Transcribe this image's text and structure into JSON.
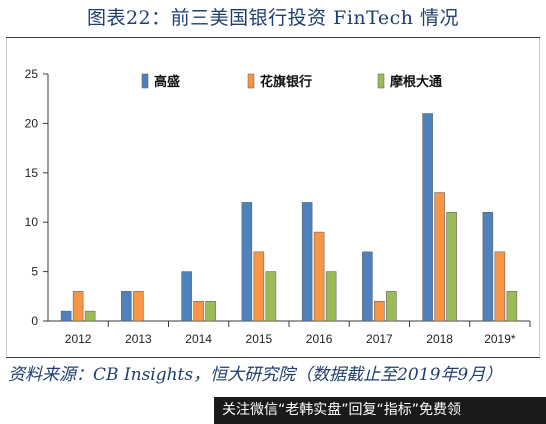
{
  "title": "图表22：前三美国银行投资 FinTech 情况",
  "source": "资料来源：CB Insights，恒大研究院（数据截止至2019年9月）",
  "banner": "关注微信“老韩实盘”回复“指标”免费领",
  "colors": {
    "text": "#1f3f6e",
    "axis": "#3b3b3b"
  },
  "chart_data": {
    "type": "bar",
    "categories": [
      "2012",
      "2013",
      "2014",
      "2015",
      "2016",
      "2017",
      "2018",
      "2019*"
    ],
    "series": [
      {
        "name": "高盛",
        "values": [
          1,
          3,
          5,
          12,
          12,
          7,
          21,
          11
        ],
        "color": "#4f81bd"
      },
      {
        "name": "花旗银行",
        "values": [
          3,
          3,
          2,
          7,
          9,
          2,
          13,
          7
        ],
        "color": "#f79646"
      },
      {
        "name": "摩根大通",
        "values": [
          1,
          0,
          2,
          5,
          5,
          3,
          11,
          3
        ],
        "color": "#9bbb59"
      }
    ],
    "yticks": [
      0,
      5,
      10,
      15,
      20,
      25
    ],
    "ylim": [
      0,
      25
    ],
    "legend": "top",
    "grid": false
  }
}
